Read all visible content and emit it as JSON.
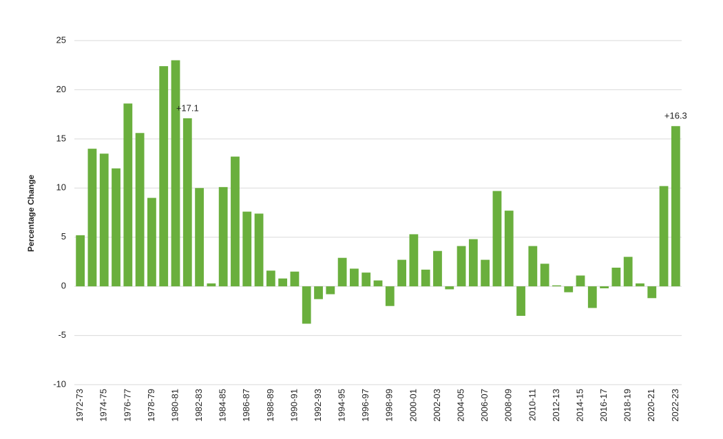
{
  "chart_data": {
    "type": "bar",
    "y_label": "Percentage Change",
    "categories": [
      "1972-73",
      null,
      "1974-75",
      null,
      "1976-77",
      null,
      "1978-79",
      null,
      "1980-81",
      null,
      "1982-83",
      null,
      "1984-85",
      null,
      "1986-87",
      null,
      "1988-89",
      null,
      "1990-91",
      null,
      "1992-93",
      null,
      "1994-95",
      null,
      "1996-97",
      null,
      "1998-99",
      null,
      "2000-01",
      null,
      "2002-03",
      null,
      "2004-05",
      null,
      "2006-07",
      null,
      "2008-09",
      null,
      "2010-11",
      null,
      "2012-13",
      null,
      "2014-15",
      null,
      "2016-17",
      null,
      "2018-19",
      null,
      "2020-21",
      null,
      "2022-23"
    ],
    "values": [
      5.2,
      14.0,
      13.5,
      12.0,
      18.6,
      15.6,
      9.0,
      22.4,
      23.0,
      17.1,
      10.0,
      0.3,
      10.1,
      13.2,
      7.6,
      7.4,
      1.6,
      0.8,
      1.5,
      -3.8,
      -1.3,
      -0.8,
      2.9,
      1.8,
      1.4,
      0.6,
      -2.0,
      2.7,
      5.3,
      1.7,
      3.6,
      -0.3,
      4.1,
      4.8,
      2.7,
      9.7,
      7.7,
      -3.0,
      4.1,
      2.3,
      0.1,
      -0.6,
      1.1,
      -2.2,
      -0.2,
      1.9,
      3.0,
      0.3,
      -1.2,
      10.2,
      16.3
    ],
    "value_labels": [
      null,
      null,
      null,
      null,
      null,
      null,
      null,
      null,
      null,
      "+17.1",
      null,
      null,
      null,
      null,
      null,
      null,
      null,
      null,
      null,
      null,
      null,
      null,
      null,
      null,
      null,
      null,
      null,
      null,
      null,
      null,
      null,
      null,
      null,
      null,
      null,
      null,
      null,
      null,
      null,
      null,
      null,
      null,
      null,
      null,
      null,
      null,
      null,
      null,
      null,
      null,
      "+16.3"
    ],
    "color": "#6aaf3d",
    "ylim": [
      -10,
      25
    ],
    "yticks": [
      -10,
      -5,
      0,
      5,
      10,
      15,
      20,
      25
    ],
    "grid": true
  }
}
